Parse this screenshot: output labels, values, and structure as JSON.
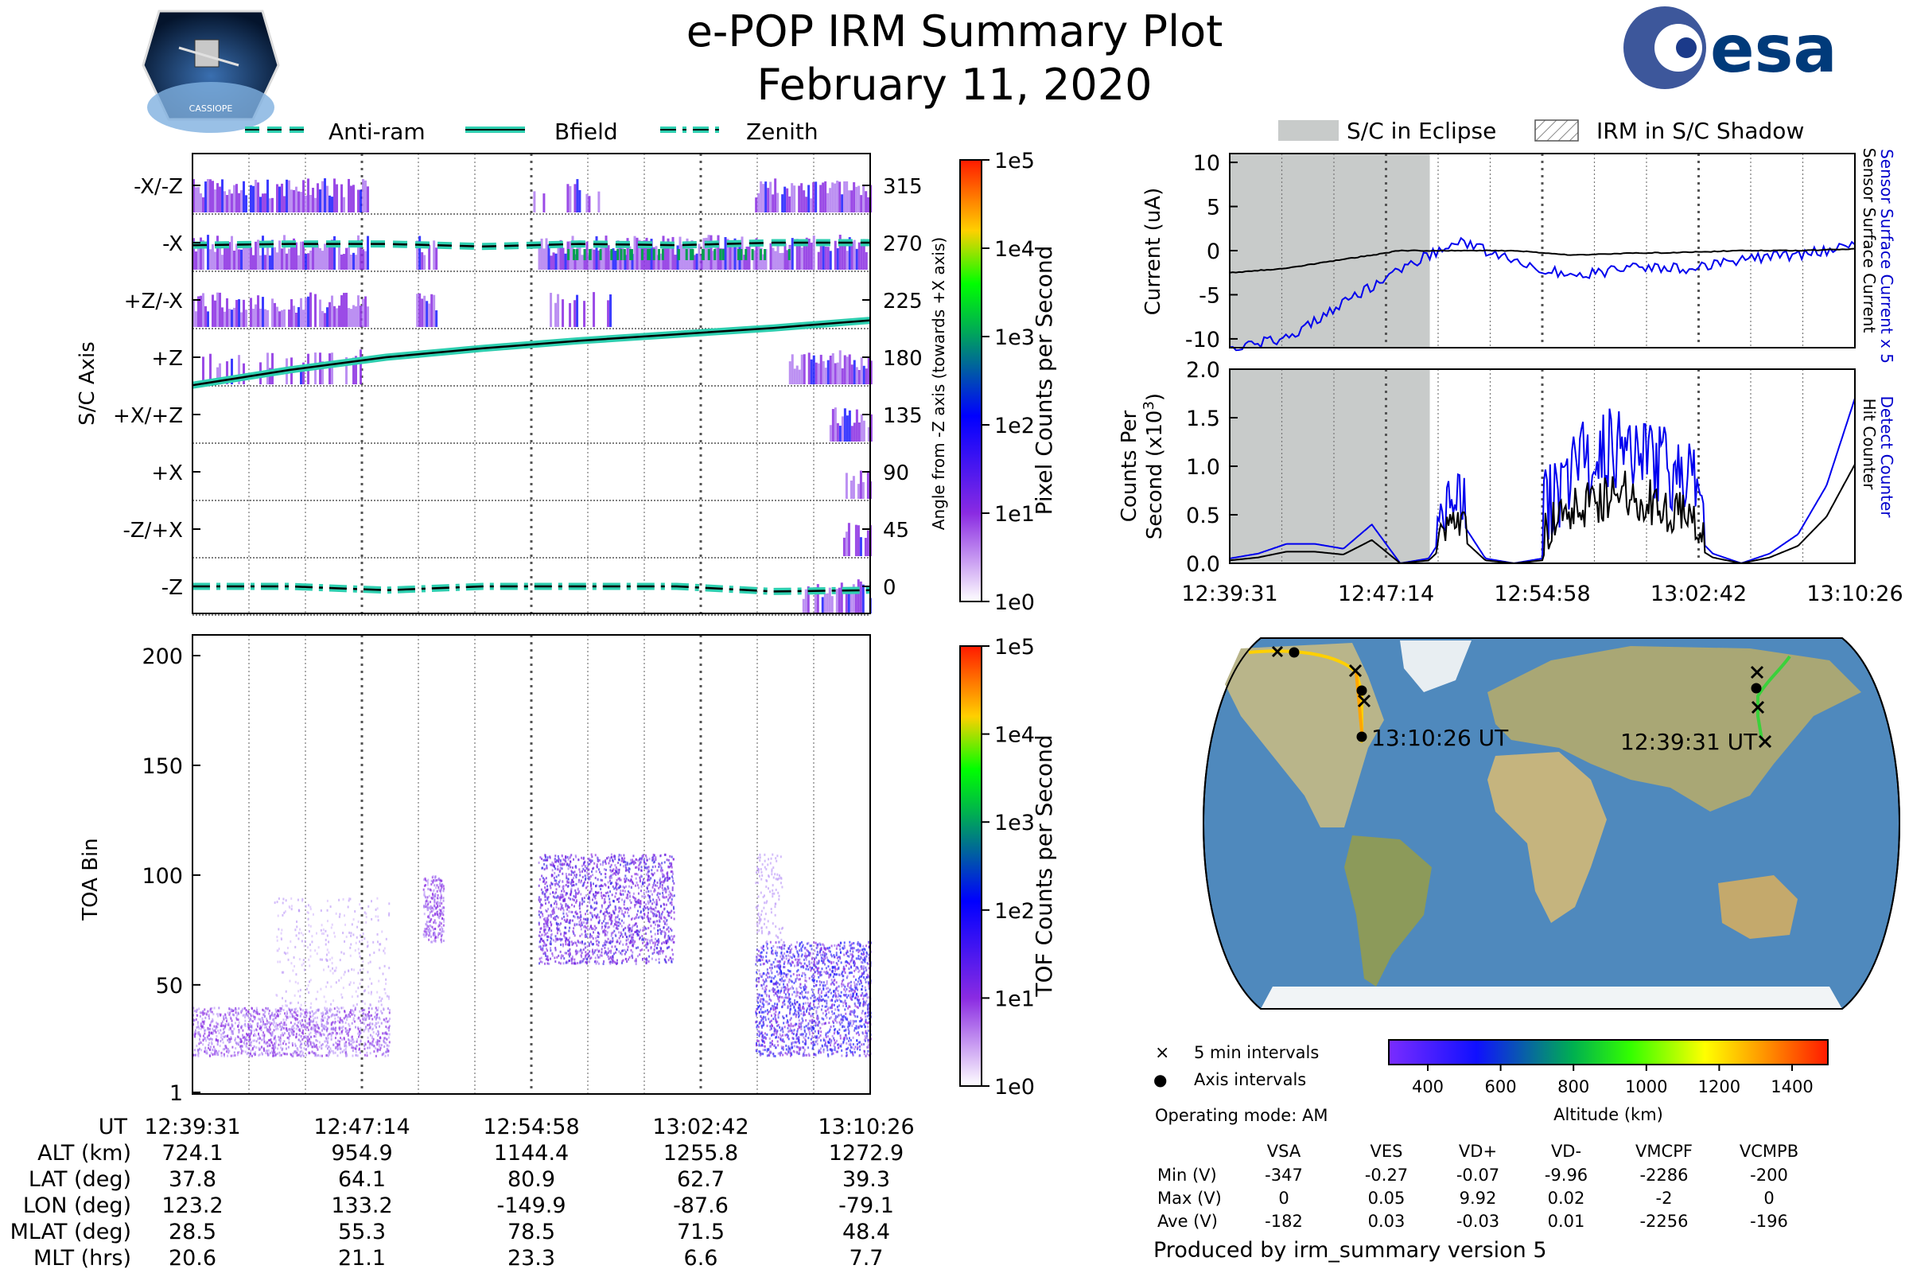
{
  "title": "e-POP IRM Summary Plot",
  "date": "February 11, 2020",
  "logos": {
    "left": "CASSIOPE",
    "right": "esa"
  },
  "legend_top": [
    {
      "name": "Anti-ram",
      "style": "dashed"
    },
    {
      "name": "Bfield",
      "style": "solid"
    },
    {
      "name": "Zenith",
      "style": "dashdot"
    }
  ],
  "legend_right": [
    {
      "name": "S/C in Eclipse"
    },
    {
      "name": "IRM in S/C Shadow"
    }
  ],
  "colors": {
    "line": "#2ecfb0",
    "current": "#0000ee",
    "hatch": "#888888",
    "eclipse": "#c8cbca"
  },
  "time_ticks": [
    "12:39:31",
    "12:47:14",
    "12:54:58",
    "13:02:42",
    "13:10:26"
  ],
  "chart_data": [
    {
      "type": "heatmap",
      "name": "sc_axis",
      "ylabel": "S/C Axis",
      "yticks": [
        "-X/-Z",
        "-X",
        "+Z/-X",
        "+Z",
        "+X/+Z",
        "+X",
        "-Z/+X",
        "-Z"
      ],
      "right_label": "Angle from -Z axis (towards +X axis)",
      "right_ticks": [
        "315",
        "270",
        "225",
        "180",
        "135",
        "90",
        "45",
        "0"
      ],
      "colorbar": {
        "label": "Pixel Counts per Second",
        "ticks": [
          "1e0",
          "1e1",
          "1e2",
          "1e3",
          "1e4",
          "1e5"
        ]
      },
      "series": [
        {
          "name": "Bfield",
          "angle": [
            158,
            170,
            180,
            187,
            193,
            198,
            203,
            209
          ]
        },
        {
          "name": "Anti-ram",
          "angle": [
            268,
            269,
            269,
            267,
            269,
            268,
            270,
            270
          ]
        },
        {
          "name": "Zenith",
          "angle": [
            0,
            0,
            -3,
            0,
            0,
            0,
            -4,
            -3
          ]
        }
      ]
    },
    {
      "type": "heatmap",
      "name": "tof",
      "ylabel": "TOA Bin",
      "yticks": [
        "200",
        "150",
        "100",
        "50",
        "1"
      ],
      "colorbar": {
        "label": "TOF Counts per Second",
        "ticks": [
          "1e0",
          "1e1",
          "1e2",
          "1e3",
          "1e4",
          "1e5"
        ]
      }
    },
    {
      "type": "line",
      "name": "current",
      "ylabel": "Current (uA)",
      "ylim": [
        -11,
        11
      ],
      "yticks": [
        "10",
        "5",
        "0",
        "-5",
        "-10"
      ],
      "right_labels": [
        {
          "text": "Sensor Surface Current x 5",
          "color": "blue"
        },
        {
          "text": "Sensor Surface Current",
          "color": "black"
        }
      ],
      "series": [
        {
          "name": "Sensor Surface Current x 5",
          "values": [
            -11,
            -10,
            -6,
            -2,
            1,
            -1,
            -3,
            -2,
            -2,
            -1,
            -0.5,
            0.5
          ]
        },
        {
          "name": "Sensor Surface Current",
          "values": [
            -2.5,
            -2,
            -1,
            0,
            0,
            0,
            -0.5,
            -0.3,
            -0.2,
            0,
            0,
            0.2
          ]
        }
      ]
    },
    {
      "type": "line",
      "name": "counts",
      "ylabel": "Counts Per Second (x10^3)",
      "ylim": [
        0,
        2
      ],
      "yticks": [
        "2.0",
        "1.5",
        "1.0",
        "0.5",
        "0.0"
      ],
      "right_labels": [
        {
          "text": "Detect Counter",
          "color": "blue"
        },
        {
          "text": "Hit Counter",
          "color": "black"
        }
      ]
    },
    {
      "type": "map",
      "name": "orbit_track",
      "start_label": "12:39:31 UT",
      "end_label": "13:10:26 UT",
      "legend": [
        {
          "symbol": "×",
          "text": "5 min intervals"
        },
        {
          "symbol": "●",
          "text": "Axis intervals"
        }
      ],
      "colorbar": {
        "label": "Altitude (km)",
        "ticks": [
          "400",
          "600",
          "800",
          "1000",
          "1200",
          "1400"
        ]
      }
    }
  ],
  "mode": "Operating mode: AM",
  "voltage_table": {
    "headers": [
      "VSA",
      "VES",
      "VD+",
      "VD-",
      "VMCPF",
      "VCMPB"
    ],
    "rows": [
      {
        "label": "Min (V)",
        "values": [
          "-347",
          "-0.27",
          "-0.07",
          "-9.96",
          "-2286",
          "-200"
        ]
      },
      {
        "label": "Max (V)",
        "values": [
          "0",
          "0.05",
          "9.92",
          "0.02",
          "-2",
          "0"
        ]
      },
      {
        "label": "Ave (V)",
        "values": [
          "-182",
          "0.03",
          "-0.03",
          "0.01",
          "-2256",
          "-196"
        ]
      }
    ]
  },
  "ephemeris": {
    "rows": [
      {
        "label": "UT",
        "values": [
          "12:39:31",
          "12:47:14",
          "12:54:58",
          "13:02:42",
          "13:10:26"
        ]
      },
      {
        "label": "ALT (km)",
        "values": [
          "724.1",
          "954.9",
          "1144.4",
          "1255.8",
          "1272.9"
        ]
      },
      {
        "label": "LAT (deg)",
        "values": [
          "37.8",
          "64.1",
          "80.9",
          "62.7",
          "39.3"
        ]
      },
      {
        "label": "LON (deg)",
        "values": [
          "123.2",
          "133.2",
          "-149.9",
          "-87.6",
          "-79.1"
        ]
      },
      {
        "label": "MLAT (deg)",
        "values": [
          "28.5",
          "55.3",
          "78.5",
          "71.5",
          "48.4"
        ]
      },
      {
        "label": "MLT (hrs)",
        "values": [
          "20.6",
          "21.1",
          "23.3",
          "6.6",
          "7.7"
        ]
      }
    ]
  },
  "footer": "Produced by irm_summary version 5"
}
